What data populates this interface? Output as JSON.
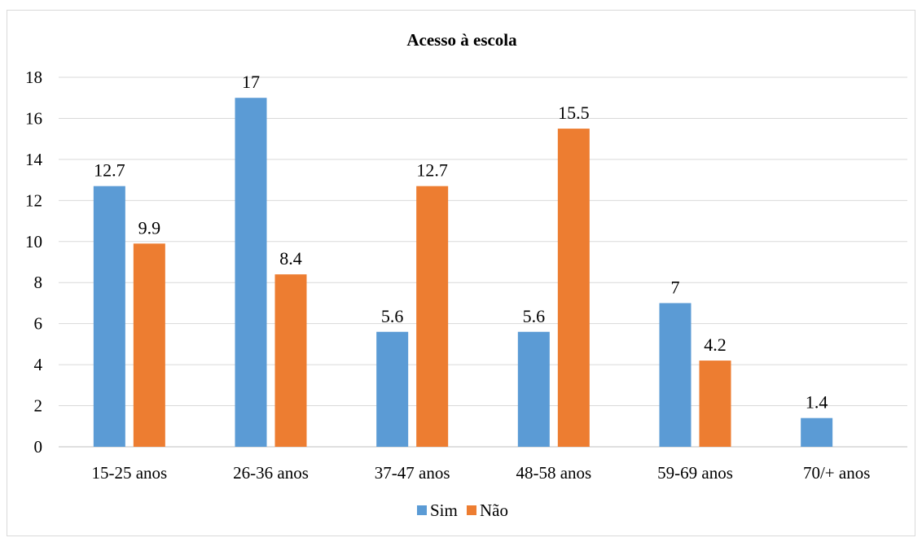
{
  "chart_data": {
    "type": "bar",
    "title": "Acesso à escola",
    "xlabel": "",
    "ylabel": "",
    "categories": [
      "15-25 anos",
      "26-36 anos",
      "37-47 anos",
      "48-58 anos",
      "59-69 anos",
      "70/+ anos"
    ],
    "series": [
      {
        "name": "Sim",
        "color": "#5b9bd5",
        "values": [
          12.7,
          17,
          5.6,
          5.6,
          7,
          1.4
        ]
      },
      {
        "name": "Não",
        "color": "#ed7d31",
        "values": [
          9.9,
          8.4,
          12.7,
          15.5,
          4.2,
          null
        ]
      }
    ],
    "ylim": [
      0,
      18
    ],
    "yticks": [
      "0",
      "2",
      "4",
      "6",
      "8",
      "10",
      "12",
      "14",
      "16",
      "18"
    ],
    "grid": true,
    "legend": "bottom",
    "data_labels": true
  }
}
